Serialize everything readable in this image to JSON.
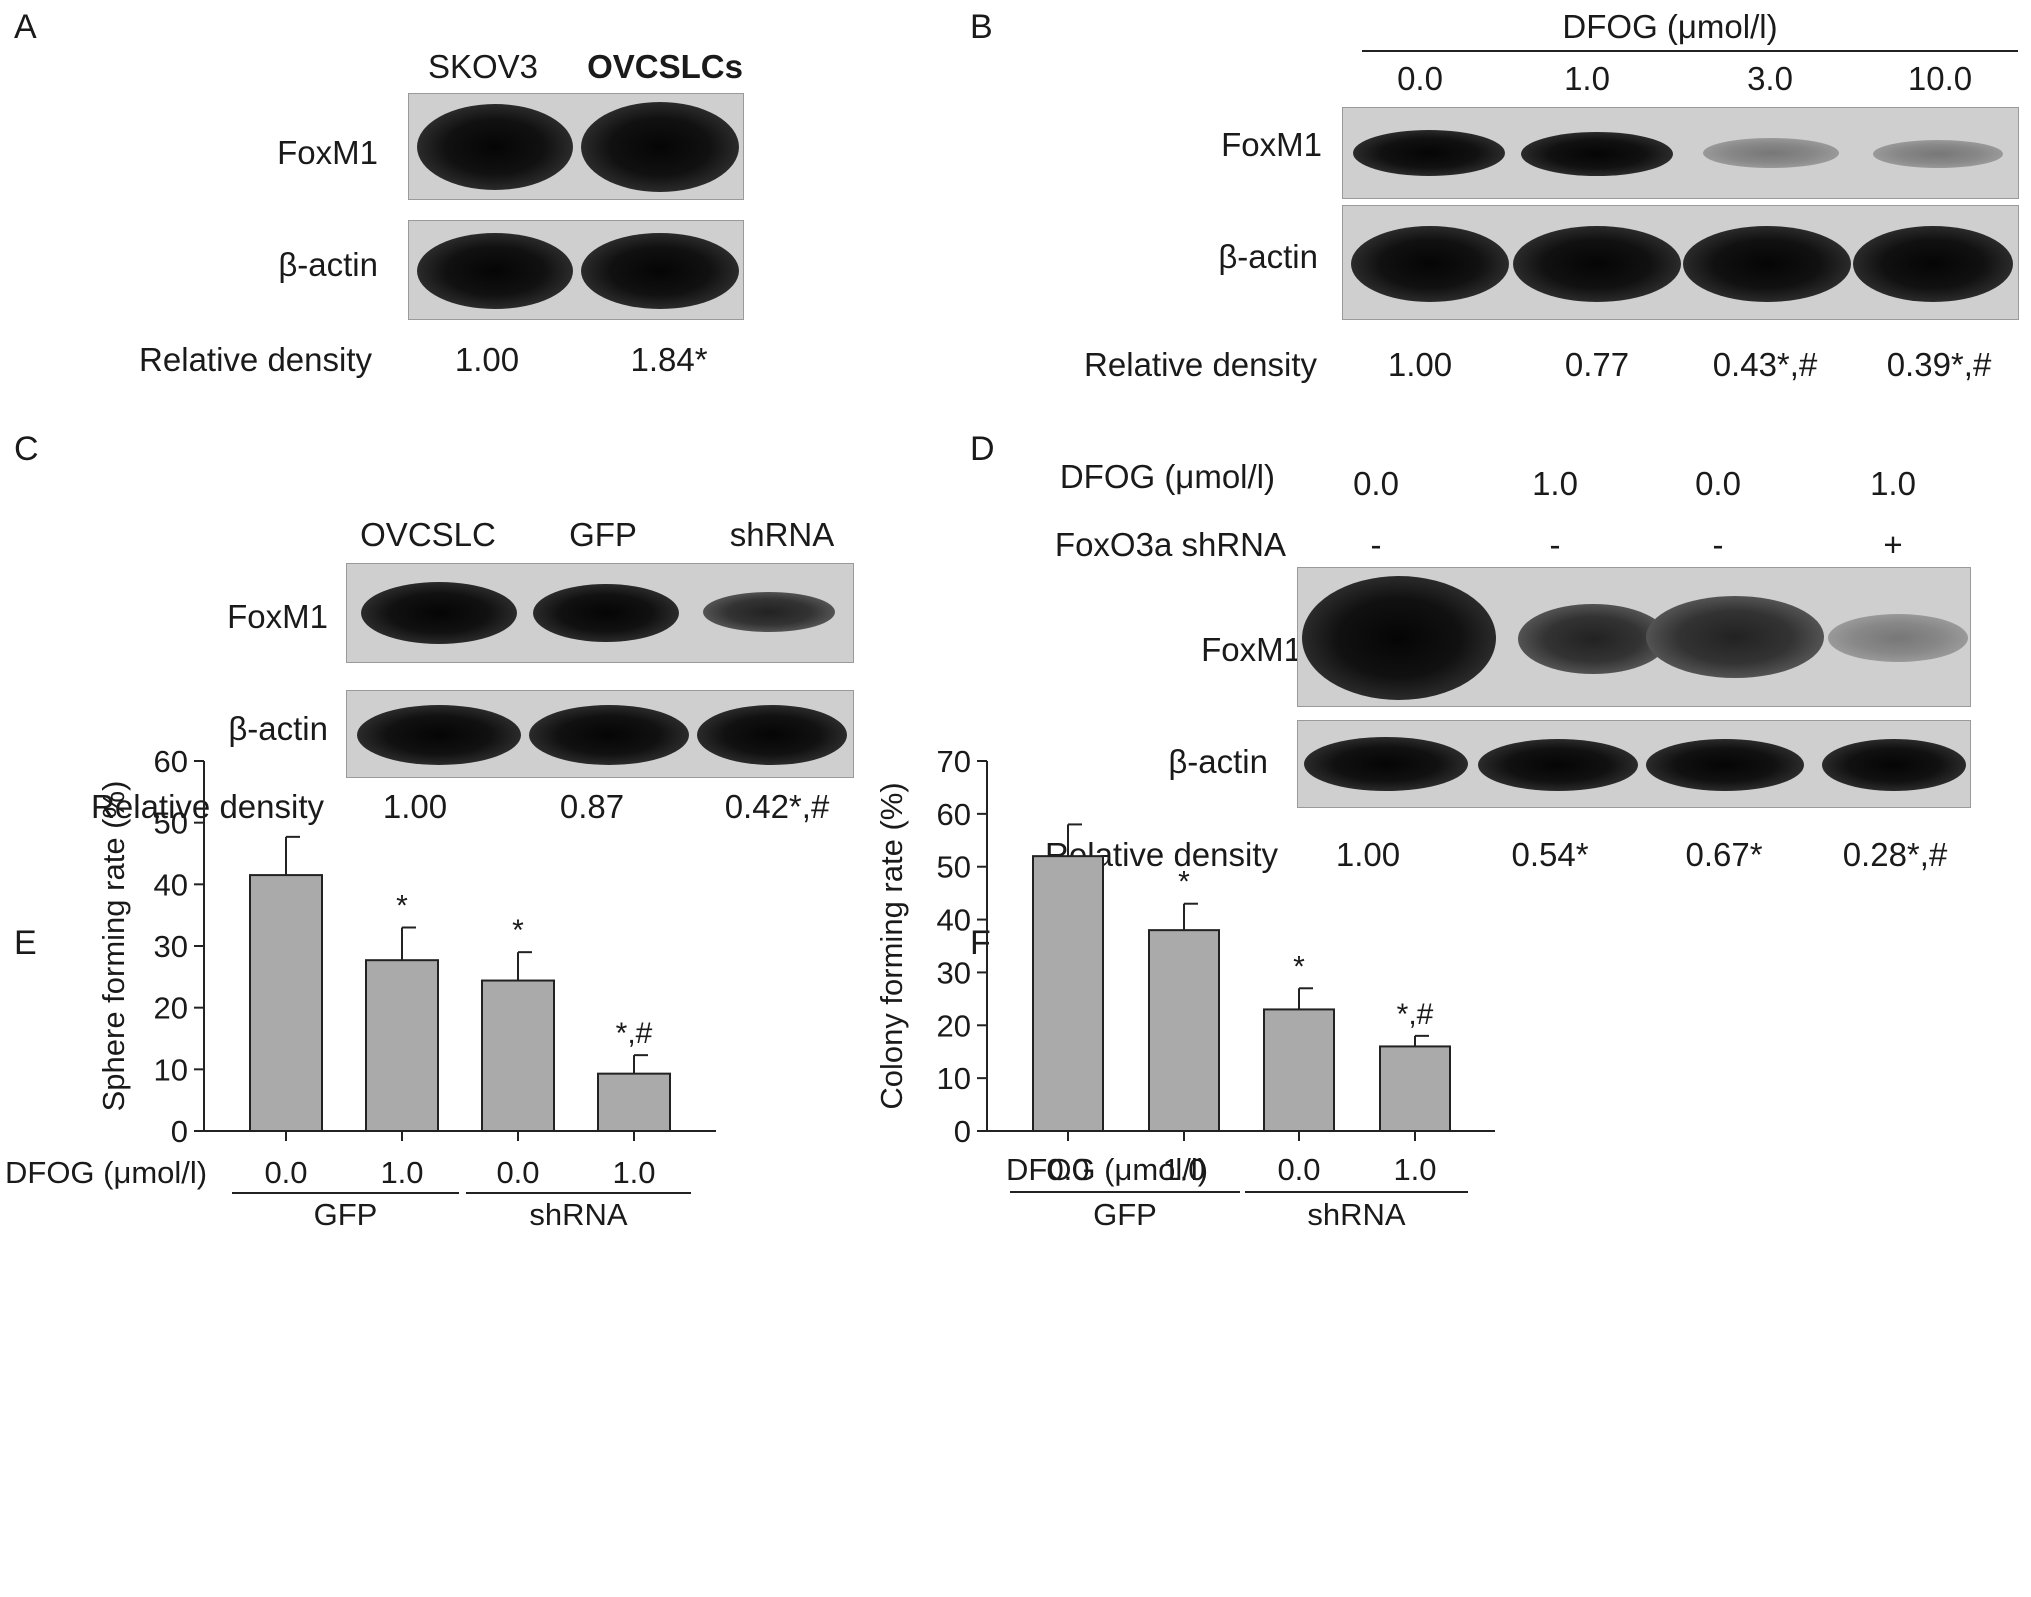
{
  "panels": {
    "a": {
      "letter": "A",
      "lanes": [
        "SKOV3",
        "OVCSLCs"
      ],
      "rows": [
        "FoxM1",
        "β-actin"
      ],
      "density_label": "Relative density",
      "densities": [
        "1.00",
        "1.84*"
      ]
    },
    "b": {
      "letter": "B",
      "treatment_header": "DFOG (μmol/l)",
      "lanes": [
        "0.0",
        "1.0",
        "3.0",
        "10.0"
      ],
      "rows": [
        "FoxM1",
        "β-actin"
      ],
      "density_label": "Relative density",
      "densities": [
        "1.00",
        "0.77",
        "0.43*,#",
        "0.39*,#"
      ]
    },
    "c": {
      "letter": "C",
      "lanes": [
        "OVCSLC",
        "GFP",
        "shRNA"
      ],
      "rows": [
        "FoxM1",
        "β-actin"
      ],
      "density_label": "Relative density",
      "densities": [
        "1.00",
        "0.87",
        "0.42*,#"
      ]
    },
    "d": {
      "letter": "D",
      "dfog_label": "DFOG (μmol/l)",
      "dfog_values": [
        "0.0",
        "1.0",
        "0.0",
        "1.0"
      ],
      "shrna_label": "FoxO3a shRNA",
      "shrna_values": [
        "-",
        "-",
        "-",
        "+"
      ],
      "rows": [
        "FoxM1",
        "β-actin"
      ],
      "density_label": "Relative density",
      "densities": [
        "1.00",
        "0.54*",
        "0.67*",
        "0.28*,#"
      ]
    },
    "e": {
      "letter": "E"
    },
    "f": {
      "letter": "F"
    }
  },
  "chart_data": [
    {
      "panel": "E",
      "type": "bar",
      "ylabel": "Sphere forming rate (%)",
      "ylim": [
        0,
        60
      ],
      "yticks": [
        "0",
        "10",
        "20",
        "30",
        "40",
        "50",
        "60"
      ],
      "categories": [
        "0.0",
        "1.0",
        "0.0",
        "1.0"
      ],
      "values": [
        41.5,
        27.7,
        24.4,
        9.3
      ],
      "errors": [
        6.2,
        5.3,
        4.6,
        3.0
      ],
      "annotations": [
        "",
        "*",
        "*",
        "*,#"
      ],
      "x_row_label": "DFOG (μmol/l)",
      "groups": [
        {
          "label": "GFP",
          "members": [
            0,
            1
          ]
        },
        {
          "label": "shRNA",
          "members": [
            2,
            3
          ]
        }
      ],
      "bar_color": "#aaaaaa"
    },
    {
      "panel": "F",
      "type": "bar",
      "ylabel": "Colony forming rate (%)",
      "ylim": [
        0,
        70
      ],
      "yticks": [
        "0",
        "10",
        "20",
        "30",
        "40",
        "50",
        "60",
        "70"
      ],
      "categories": [
        "0.0",
        "1.0",
        "0.0",
        "1.0"
      ],
      "values": [
        52,
        38,
        23,
        16
      ],
      "errors": [
        6,
        5,
        4,
        2
      ],
      "annotations": [
        "",
        "*",
        "*",
        "*,#"
      ],
      "x_row_label": "DFOG (μmol/l)",
      "groups": [
        {
          "label": "GFP",
          "members": [
            0,
            1
          ]
        },
        {
          "label": "shRNA",
          "members": [
            2,
            3
          ]
        }
      ],
      "bar_color": "#aaaaaa"
    }
  ]
}
